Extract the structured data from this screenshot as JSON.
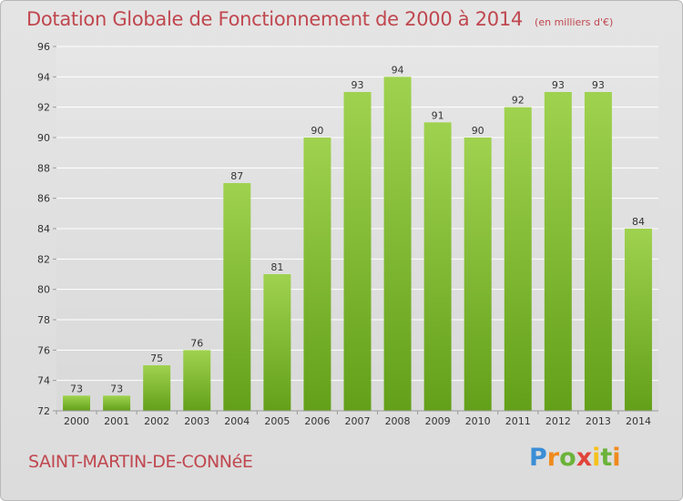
{
  "header": {
    "title": "Dotation Globale de Fonctionnement de 2000 à 2014",
    "unit_note": "(en milliers d'€)"
  },
  "commune": "SAINT-MARTIN-DE-CONNéE",
  "brand": "Proxiti",
  "colors": {
    "bar_light": "#9fd24f",
    "bar_dark": "#63a019",
    "title": "#c0474f",
    "grid": "#ffffff"
  },
  "chart_data": {
    "type": "bar",
    "title": "Dotation Globale de Fonctionnement de 2000 à 2014",
    "subtitle": "(en milliers d'€)",
    "xlabel": "",
    "ylabel": "",
    "categories": [
      "2000",
      "2001",
      "2002",
      "2003",
      "2004",
      "2005",
      "2006",
      "2007",
      "2008",
      "2009",
      "2010",
      "2011",
      "2012",
      "2013",
      "2014"
    ],
    "values": [
      73,
      73,
      75,
      76,
      87,
      81,
      90,
      93,
      94,
      91,
      90,
      92,
      93,
      93,
      84
    ],
    "ylim": [
      72,
      96
    ],
    "yticks": [
      72,
      74,
      76,
      78,
      80,
      82,
      84,
      86,
      88,
      90,
      92,
      94,
      96
    ],
    "grid": true,
    "legend": "none"
  }
}
